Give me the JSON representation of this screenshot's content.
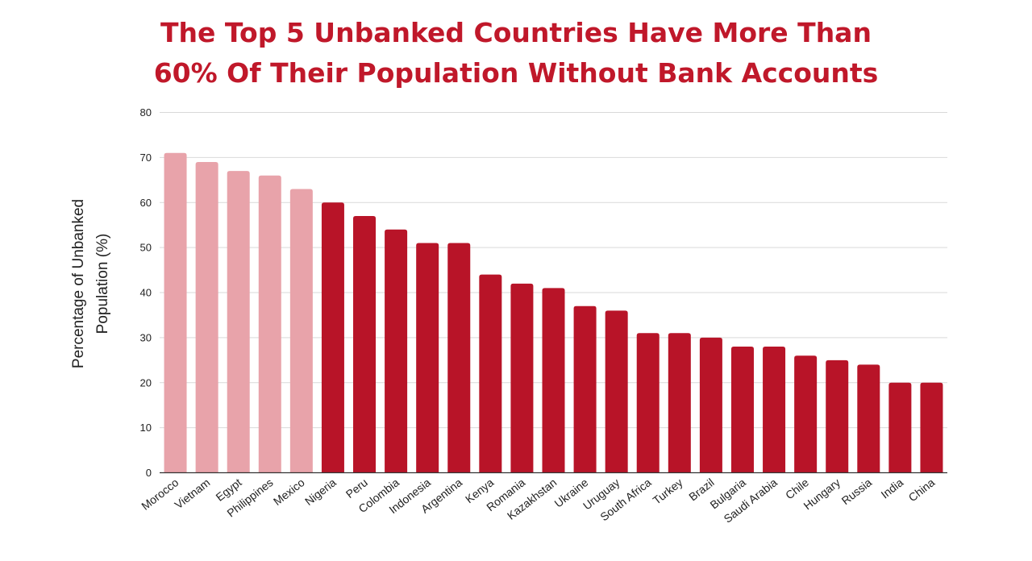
{
  "title_line1": "The Top 5 Unbanked Countries Have More Than",
  "title_line2": "60% Of Their Population Without Bank Accounts",
  "chart_data": {
    "type": "bar",
    "title": "The Top 5 Unbanked Countries Have More Than 60% Of Their Population Without Bank Accounts",
    "xlabel": "",
    "ylabel_lines": [
      "Percentage of Unbanked",
      "Population (%)"
    ],
    "ylim": [
      0,
      80
    ],
    "yticks": [
      0,
      10,
      20,
      30,
      40,
      50,
      60,
      70,
      80
    ],
    "grid": true,
    "categories": [
      "Morocco",
      "Vietnam",
      "Egypt",
      "Philippines",
      "Mexico",
      "Nigeria",
      "Peru",
      "Colombia",
      "Indonesia",
      "Argentina",
      "Kenya",
      "Romania",
      "Kazakhstan",
      "Ukraine",
      "Uruguay",
      "South Africa",
      "Turkey",
      "Brazil",
      "Bulgaria",
      "Saudi Arabia",
      "Chile",
      "Hungary",
      "Russia",
      "India",
      "China"
    ],
    "values": [
      71,
      69,
      67,
      66,
      63,
      60,
      57,
      54,
      51,
      51,
      44,
      42,
      41,
      37,
      36,
      31,
      31,
      30,
      28,
      28,
      26,
      25,
      24,
      20,
      20
    ],
    "highlight_count": 5,
    "colors": {
      "highlight": "#e8a3aa",
      "default": "#b81428",
      "grid": "#d9d9d9",
      "axis": "#333333"
    }
  }
}
